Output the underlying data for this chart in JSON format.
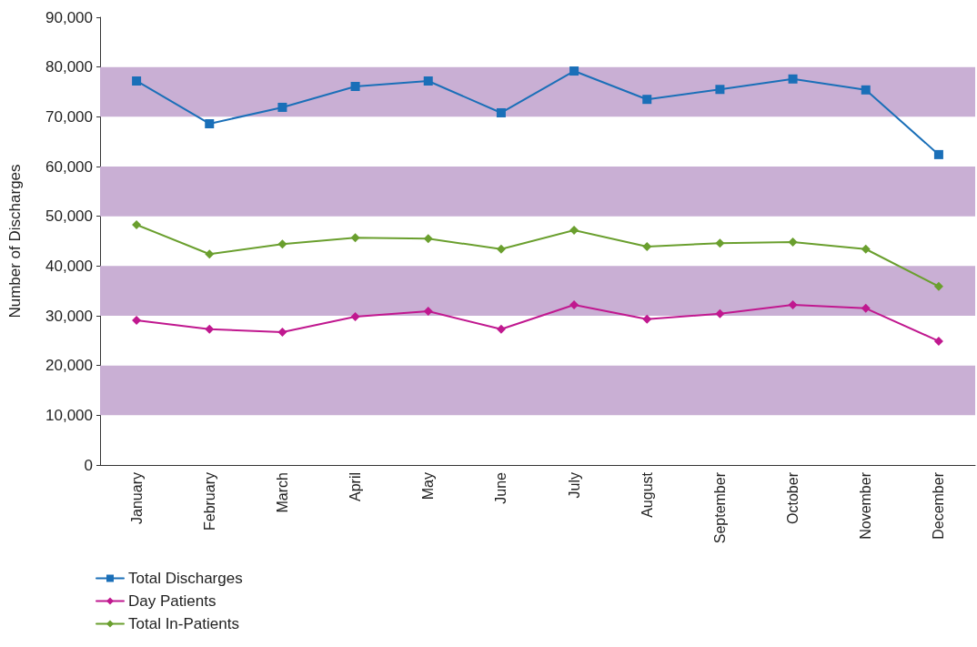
{
  "chart_data": {
    "type": "line",
    "ylabel": "Number of Discharges",
    "categories": [
      "January",
      "February",
      "March",
      "April",
      "May",
      "June",
      "July",
      "August",
      "September",
      "October",
      "November",
      "December"
    ],
    "series": [
      {
        "name": "Total Discharges",
        "color": "#1a6fb8",
        "marker": "square",
        "values": [
          77200,
          68600,
          71900,
          76100,
          77200,
          70800,
          79200,
          73500,
          75500,
          77600,
          75400,
          62400
        ]
      },
      {
        "name": "Day Patients",
        "color": "#c0188f",
        "marker": "diamond",
        "values": [
          29100,
          27300,
          26700,
          29800,
          30900,
          27300,
          32200,
          29300,
          30400,
          32200,
          31500,
          24900
        ]
      },
      {
        "name": "Total In-Patients",
        "color": "#6a9f2e",
        "marker": "diamond",
        "values": [
          48300,
          42400,
          44400,
          45700,
          45500,
          43400,
          47200,
          43900,
          44600,
          44800,
          43400,
          35900
        ]
      }
    ],
    "ylim": [
      0,
      90000
    ],
    "yticks": [
      0,
      {
        "value": 10000,
        "label": "10,000"
      },
      {
        "value": 20000,
        "label": "20,000"
      },
      {
        "value": 30000,
        "label": "30,000"
      },
      {
        "value": 40000,
        "label": "40,000"
      },
      {
        "value": 50000,
        "label": "50,000"
      },
      {
        "value": 60000,
        "label": "60,000"
      },
      {
        "value": 70000,
        "label": "70,000"
      },
      {
        "value": 80000,
        "label": "80,000"
      },
      {
        "value": 90000,
        "label": "90,000"
      }
    ],
    "bands": [
      {
        "axis": "y",
        "from": 10000,
        "to": 20000,
        "color": "#c9afd4"
      },
      {
        "axis": "y",
        "from": 30000,
        "to": 40000,
        "color": "#c9afd4"
      },
      {
        "axis": "y",
        "from": 50000,
        "to": 60000,
        "color": "#c9afd4"
      },
      {
        "axis": "y",
        "from": 70000,
        "to": 80000,
        "color": "#c9afd4"
      }
    ],
    "grid": false,
    "legend": "bottom left",
    "line_style": "solid"
  }
}
